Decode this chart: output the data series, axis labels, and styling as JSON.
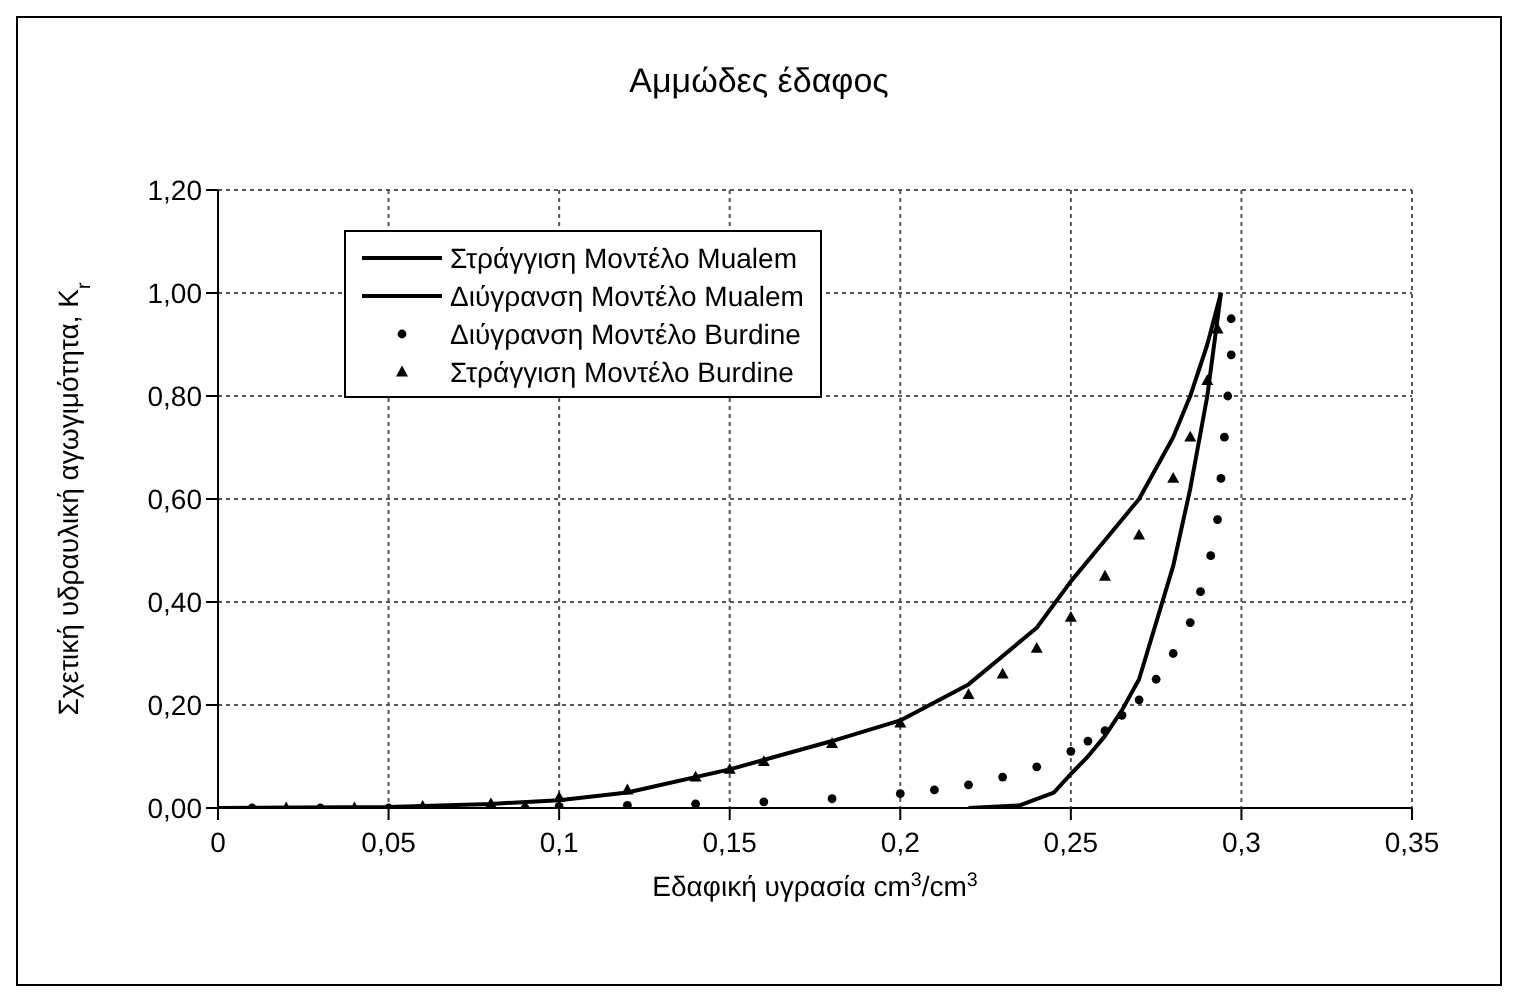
{
  "chart_data": {
    "type": "scatter",
    "title": "Αμμώδες έδαφος",
    "xlabel": "Εδαφική υγρασία cm$^{3}$/cm$^{3}$",
    "ylabel": "Σχετική υδραυλική αγωγιμότητα, K$_{r}$",
    "xlim": [
      0,
      0.35
    ],
    "xticks": [
      0,
      {
        "value": 0.05,
        "label": "0,05"
      },
      {
        "value": 0.1,
        "label": "0,1"
      },
      {
        "value": 0.15,
        "label": "0,15"
      },
      {
        "value": 0.2,
        "label": "0,2"
      },
      {
        "value": 0.25,
        "label": "0,25"
      },
      {
        "value": 0.3,
        "label": "0,3"
      },
      {
        "value": 0.35,
        "label": "0,35"
      }
    ],
    "ylim": [
      0,
      1.2
    ],
    "yticks": [
      {
        "value": 0,
        "label": "0,00"
      },
      {
        "value": 0.2,
        "label": "0,20"
      },
      {
        "value": 0.4,
        "label": "0,40"
      },
      {
        "value": 0.6,
        "label": "0,60"
      },
      {
        "value": 0.8,
        "label": "0,80"
      },
      {
        "value": 1,
        "label": "1,00"
      },
      {
        "value": 1.2,
        "label": "1,20"
      }
    ],
    "grid": true,
    "legend": "top left",
    "series": [
      {
        "name": "Στράγγιση Μοντέλο Mualem",
        "type": "line",
        "marker": "none",
        "line_style": "solid",
        "color": "#000000",
        "x": [
          0,
          0.05,
          0.08,
          0.1,
          0.12,
          0.15,
          0.18,
          0.2,
          0.22,
          0.24,
          0.25,
          0.26,
          0.27,
          0.28,
          0.285,
          0.29,
          0.294
        ],
        "values": [
          0,
          0.002,
          0.008,
          0.015,
          0.03,
          0.075,
          0.13,
          0.17,
          0.24,
          0.35,
          0.44,
          0.52,
          0.6,
          0.72,
          0.8,
          0.9,
          1.0
        ]
      },
      {
        "name": "Διύγρανση  Μοντέλο Mualem",
        "type": "line",
        "marker": "none",
        "line_style": "solid",
        "color": "#000000",
        "x": [
          0.22,
          0.235,
          0.245,
          0.25,
          0.255,
          0.26,
          0.265,
          0.27,
          0.275,
          0.28,
          0.285,
          0.29,
          0.294
        ],
        "values": [
          0,
          0.005,
          0.03,
          0.066,
          0.1,
          0.14,
          0.19,
          0.25,
          0.36,
          0.47,
          0.62,
          0.8,
          1.0
        ]
      },
      {
        "name": "Διύγρανση Μοντέλο Burdine",
        "type": "scatter",
        "marker": "circle",
        "color": "#000000",
        "x": [
          0.01,
          0.03,
          0.05,
          0.09,
          0.1,
          0.12,
          0.14,
          0.16,
          0.18,
          0.2,
          0.21,
          0.22,
          0.23,
          0.24,
          0.25,
          0.255,
          0.26,
          0.265,
          0.27,
          0.275,
          0.28,
          0.285,
          0.288,
          0.291,
          0.293,
          0.294,
          0.295,
          0.296,
          0.297,
          0.297
        ],
        "values": [
          0,
          0,
          0,
          0,
          0.003,
          0.005,
          0.008,
          0.012,
          0.018,
          0.028,
          0.035,
          0.045,
          0.06,
          0.08,
          0.11,
          0.13,
          0.15,
          0.18,
          0.21,
          0.25,
          0.3,
          0.36,
          0.42,
          0.49,
          0.56,
          0.64,
          0.72,
          0.8,
          0.88,
          0.95
        ]
      },
      {
        "name": "Στράγγιση Μοντέλο Burdine",
        "type": "scatter",
        "marker": "triangle",
        "color": "#000000",
        "x": [
          0.02,
          0.04,
          0.06,
          0.08,
          0.1,
          0.12,
          0.14,
          0.15,
          0.16,
          0.18,
          0.2,
          0.22,
          0.23,
          0.24,
          0.25,
          0.26,
          0.27,
          0.28,
          0.285,
          0.29,
          0.293
        ],
        "values": [
          0,
          0,
          0.003,
          0.008,
          0.02,
          0.035,
          0.06,
          0.075,
          0.09,
          0.125,
          0.165,
          0.22,
          0.26,
          0.31,
          0.37,
          0.45,
          0.53,
          0.64,
          0.72,
          0.83,
          0.93
        ]
      }
    ]
  }
}
